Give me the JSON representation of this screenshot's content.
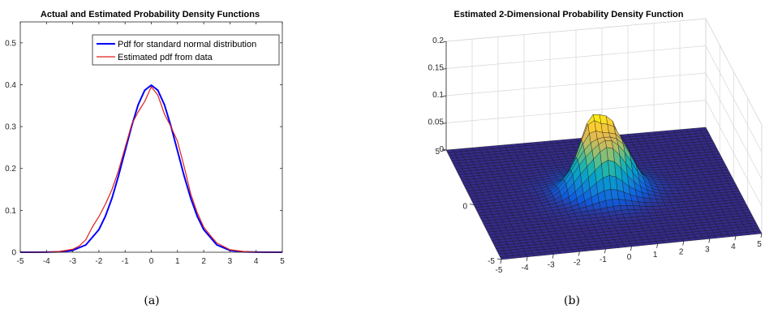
{
  "chart_data": [
    {
      "type": "line",
      "title": "Actual and Estimated Probability Density Functions",
      "xlim": [
        -5,
        5
      ],
      "ylim": [
        0,
        0.55
      ],
      "xticks": [
        -5,
        -4,
        -3,
        -2,
        -1,
        0,
        1,
        2,
        3,
        4,
        5
      ],
      "yticks": [
        0,
        0.1,
        0.2,
        0.3,
        0.4,
        0.5
      ],
      "grid": false,
      "legend_position": "top-right",
      "series": [
        {
          "name": "Pdf for standard normal distribution",
          "color": "#0000ff",
          "x": [
            -5,
            -4.5,
            -4,
            -3.5,
            -3,
            -2.5,
            -2,
            -1.75,
            -1.5,
            -1.25,
            -1,
            -0.75,
            -0.5,
            -0.25,
            0,
            0.25,
            0.5,
            0.75,
            1,
            1.25,
            1.5,
            1.75,
            2,
            2.5,
            3,
            3.5,
            4,
            4.5,
            5
          ],
          "y": [
            0.0,
            0.0,
            0.0001,
            0.0009,
            0.0044,
            0.0175,
            0.054,
            0.0863,
            0.1295,
            0.1826,
            0.242,
            0.3011,
            0.3521,
            0.3867,
            0.3989,
            0.3867,
            0.3521,
            0.3011,
            0.242,
            0.1826,
            0.1295,
            0.0863,
            0.054,
            0.0175,
            0.0044,
            0.0009,
            0.0001,
            0.0,
            0.0
          ]
        },
        {
          "name": "Estimated pdf from data",
          "color": "#e0201b",
          "x": [
            -5,
            -4,
            -3.5,
            -3,
            -2.75,
            -2.5,
            -2.25,
            -2,
            -1.75,
            -1.5,
            -1.25,
            -1,
            -0.75,
            -0.5,
            -0.25,
            0,
            0.25,
            0.5,
            0.75,
            1,
            1.25,
            1.5,
            1.75,
            2,
            2.25,
            2.5,
            3,
            3.5,
            4,
            5
          ],
          "y": [
            0.0,
            0.0,
            0.002,
            0.007,
            0.015,
            0.03,
            0.06,
            0.085,
            0.115,
            0.15,
            0.195,
            0.25,
            0.305,
            0.335,
            0.36,
            0.395,
            0.375,
            0.33,
            0.3,
            0.265,
            0.205,
            0.14,
            0.095,
            0.06,
            0.04,
            0.022,
            0.006,
            0.002,
            0.0,
            0.0
          ]
        }
      ]
    },
    {
      "type": "surface",
      "title": "Estimated 2-Dimensional Probability Density Function",
      "xlim": [
        -5,
        5
      ],
      "ylim": [
        -5,
        5
      ],
      "zlim": [
        0,
        0.2
      ],
      "xticks": [
        -5,
        -4,
        -3,
        -2,
        -1,
        0,
        1,
        2,
        3,
        4,
        5
      ],
      "yticks": [
        -5,
        0,
        5
      ],
      "zticks": [
        0,
        0.05,
        0.1,
        0.15,
        0.2
      ],
      "zticklabels": [
        "0",
        "0.05",
        "0.1",
        "0.15",
        "0.2"
      ],
      "colormap": "parula",
      "grid": true,
      "peak_value": 0.13
    }
  ],
  "captions": {
    "a": "(a)",
    "b": "(b)"
  }
}
